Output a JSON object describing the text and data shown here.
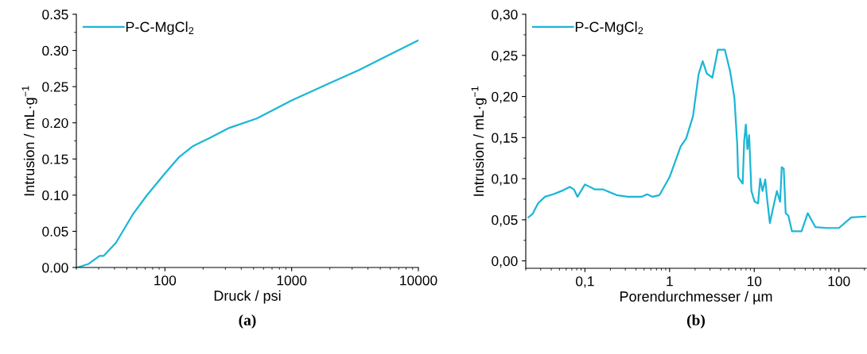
{
  "chart_data": [
    {
      "type": "line",
      "xlabel": "Druck / psi",
      "ylabel": "Intrusion / mL·g$^{−1}$",
      "log": "x",
      "legend": "top left",
      "grid": false,
      "annotations": [
        "(a)"
      ],
      "xlim": [
        20,
        10000
      ],
      "xticks": [
        100,
        1000,
        10000
      ],
      "ylim": [
        0,
        0.35
      ],
      "yticks": [
        {
          "value": 0,
          "label": "0.00"
        },
        {
          "value": 0.05,
          "label": "0.05"
        },
        {
          "value": 0.1,
          "label": "0.10"
        },
        {
          "value": 0.15,
          "label": "0.15"
        },
        {
          "value": 0.2,
          "label": "0.20"
        },
        {
          "value": 0.25,
          "label": "0.25"
        },
        {
          "value": 0.3,
          "label": "0.30"
        },
        {
          "value": 0.35,
          "label": "0.35"
        }
      ],
      "series": [
        {
          "name": "P-C-MgCl$_{2}$",
          "color": "#1ab6d6",
          "x": [
            20.4,
            25,
            30.5,
            32.8,
            41,
            55.6,
            71.5,
            100,
            130,
            167,
            226,
            322,
            531,
            1000,
            2060,
            3400,
            5610,
            10000
          ],
          "values": [
            0.0,
            0.005,
            0.016,
            0.016,
            0.034,
            0.073,
            0.099,
            0.13,
            0.153,
            0.168,
            0.179,
            0.193,
            0.206,
            0.231,
            0.256,
            0.273,
            0.292,
            0.314
          ]
        }
      ]
    },
    {
      "type": "line",
      "xlabel": "Porendurchmesser / µm",
      "ylabel": "Intrusion / mL·g$^{−1}$",
      "log": "x",
      "legend": "top left",
      "grid": false,
      "annotations": [
        "(b)"
      ],
      "xlim": [
        0.02,
        210
      ],
      "xticks": [
        {
          "value": 0.1,
          "label": "0,1"
        },
        1,
        10,
        100
      ],
      "ylim": [
        -0.009,
        0.3
      ],
      "yticks": [
        {
          "value": 0,
          "label": "0,00"
        },
        {
          "value": 0.05,
          "label": "0,05"
        },
        {
          "value": 0.1,
          "label": "0,10"
        },
        {
          "value": 0.15,
          "label": "0,15"
        },
        {
          "value": 0.2,
          "label": "0,20"
        },
        {
          "value": 0.25,
          "label": "0,25"
        },
        {
          "value": 0.3,
          "label": "0,30"
        }
      ],
      "series": [
        {
          "name": "P-C-MgCl$_{2}$",
          "color": "#1ab6d6",
          "x": [
            0.0215,
            0.024,
            0.0279,
            0.0337,
            0.0422,
            0.0528,
            0.0662,
            0.0741,
            0.0817,
            0.1,
            0.13,
            0.163,
            0.237,
            0.32,
            0.466,
            0.542,
            0.629,
            0.759,
            1,
            1.35,
            1.57,
            1.89,
            2.2,
            2.46,
            2.75,
            3.2,
            3.72,
            4.49,
            5.2,
            5.83,
            6.29,
            6.46,
            7.3,
            7.6,
            7.95,
            8.3,
            8.7,
            9.25,
            10.1,
            11.1,
            11.75,
            12.5,
            13.5,
            14.2,
            15.3,
            16.5,
            18.5,
            20.2,
            21.1,
            22.3,
            23.5,
            25.3,
            27.9,
            36.2,
            42.8,
            52.8,
            71.3,
            100,
            140,
            210
          ],
          "values": [
            0.053,
            0.057,
            0.07,
            0.078,
            0.081,
            0.085,
            0.09,
            0.087,
            0.078,
            0.093,
            0.087,
            0.087,
            0.08,
            0.078,
            0.078,
            0.081,
            0.078,
            0.08,
            0.102,
            0.139,
            0.149,
            0.176,
            0.227,
            0.243,
            0.228,
            0.223,
            0.257,
            0.257,
            0.23,
            0.198,
            0.142,
            0.102,
            0.094,
            0.146,
            0.166,
            0.136,
            0.153,
            0.085,
            0.072,
            0.07,
            0.1,
            0.085,
            0.099,
            0.075,
            0.046,
            0.062,
            0.085,
            0.072,
            0.114,
            0.112,
            0.058,
            0.055,
            0.036,
            0.036,
            0.058,
            0.041,
            0.04,
            0.04,
            0.053,
            0.054
          ]
        }
      ]
    }
  ]
}
